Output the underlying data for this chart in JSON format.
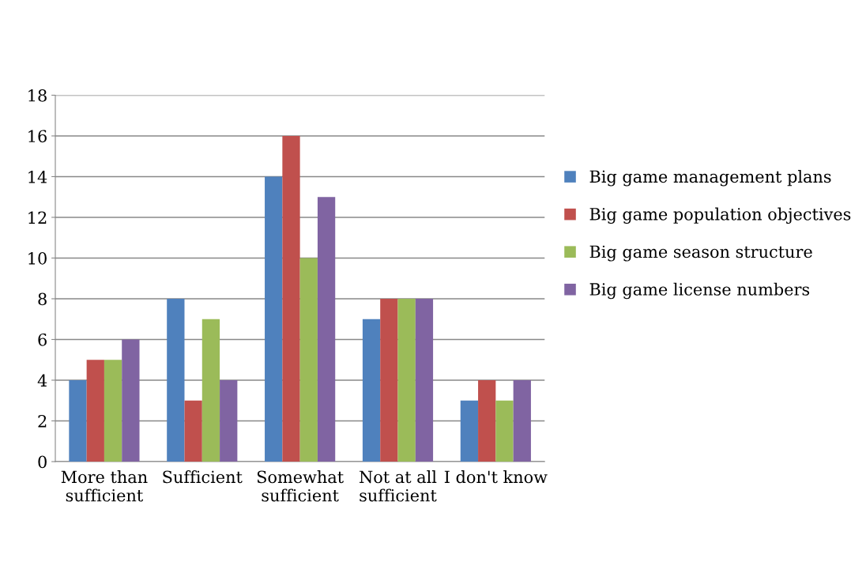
{
  "chart_data": {
    "type": "bar",
    "categories": [
      "More than\nsufficient",
      "Sufficient",
      "Somewhat\nsufficient",
      "Not at all\nsufficient",
      "I don't know"
    ],
    "series": [
      {
        "name": "Big game management plans",
        "color": "#4f81bd",
        "values": [
          4,
          8,
          14,
          7,
          3
        ]
      },
      {
        "name": "Big game population objectives",
        "color": "#c0504d",
        "values": [
          5,
          3,
          16,
          8,
          4
        ]
      },
      {
        "name": "Big game season structure",
        "color": "#9bbb59",
        "values": [
          5,
          7,
          10,
          8,
          3
        ]
      },
      {
        "name": "Big game license numbers",
        "color": "#8064a2",
        "values": [
          6,
          4,
          13,
          8,
          4
        ]
      }
    ],
    "ylim": [
      0,
      18
    ],
    "yticks": [
      0,
      2,
      4,
      6,
      8,
      10,
      12,
      14,
      16,
      18
    ],
    "grid": "y",
    "legend": "right"
  }
}
